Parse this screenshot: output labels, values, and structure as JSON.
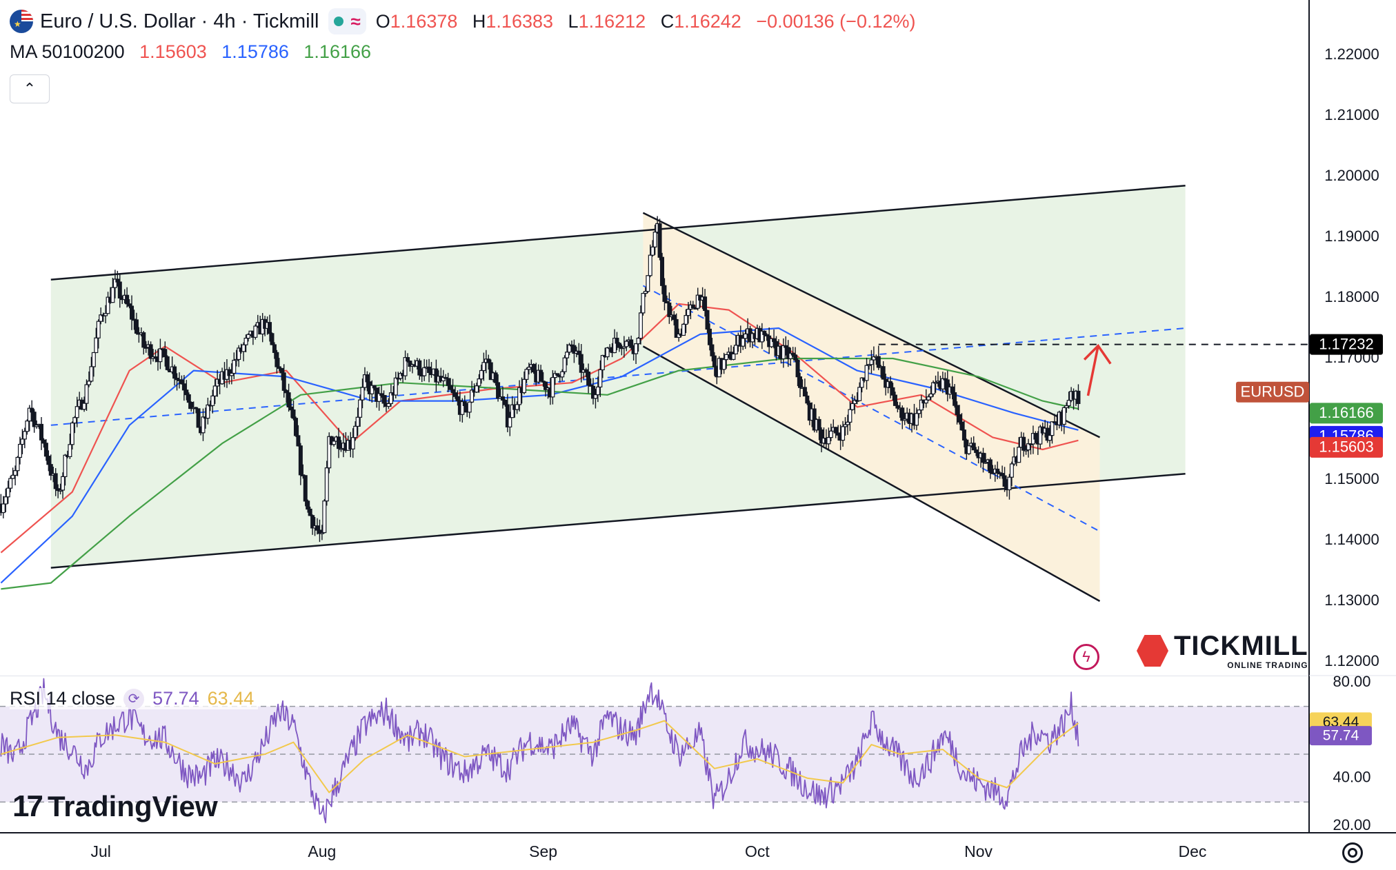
{
  "header": {
    "title": "Euro / U.S. Dollar · 4h · Tickmill",
    "open_label": "O",
    "open": "1.16378",
    "high_label": "H",
    "high": "1.16383",
    "low_label": "L",
    "low": "1.16212",
    "close_label": "C",
    "close": "1.16242",
    "change": "−0.00136 (−0.12%)",
    "ma_label": "MA 50100200",
    "ma_50": "1.15603",
    "ma_100": "1.15786",
    "ma_200": "1.16166",
    "collapse_icon": "chevron-up-icon"
  },
  "rsi_header": {
    "label": "RSI 14 close",
    "rsi": "57.74",
    "rsi_ma": "63.44"
  },
  "branding": {
    "tradingview": "TradingView",
    "tickmill": "TICKMILL",
    "tickmill_sub": "ONLINE TRADING"
  },
  "colors": {
    "ma_50": "#ef5350",
    "ma_100": "#2962ff",
    "ma_200": "#43a047",
    "rsi": "#7e57c2",
    "rsi_ma": "#f2c94c",
    "up_candle": "#131722",
    "channel_up_fill": "#e8f3e5",
    "channel_down_fill": "#fbf1dc",
    "arrow": "#e53935"
  },
  "chart_data": [
    {
      "type": "candlestick",
      "symbol": "EURUSD",
      "timeframe": "4h",
      "x_ticks": [
        "Jul",
        "Aug",
        "Sep",
        "Oct",
        "Nov",
        "Dec"
      ],
      "y_ticks": [
        "1.22000",
        "1.21000",
        "1.20000",
        "1.19000",
        "1.18000",
        "1.17000",
        "1.16000",
        "1.15000",
        "1.14000",
        "1.13000",
        "1.12000"
      ],
      "ylim": [
        1.1167,
        1.2282
      ],
      "price_labels": [
        {
          "name": "resistance",
          "value": "1.17232"
        },
        {
          "name": "EURUSD",
          "value": "1.16242",
          "text": "EURUSD"
        },
        {
          "name": "MA 200",
          "value": "1.16166"
        },
        {
          "name": "MA 100",
          "value": "1.15786"
        },
        {
          "name": "MA 50",
          "value": "1.15603"
        }
      ],
      "anchors": [
        {
          "date": "2025-06-17",
          "price": 1.146
        },
        {
          "date": "2025-06-19",
          "price": 1.151
        },
        {
          "date": "2025-06-21",
          "price": 1.162
        },
        {
          "date": "2025-06-23",
          "price": 1.156
        },
        {
          "date": "2025-06-25",
          "price": 1.147
        },
        {
          "date": "2025-06-27",
          "price": 1.159
        },
        {
          "date": "2025-06-29",
          "price": 1.165
        },
        {
          "date": "2025-07-01",
          "price": 1.177
        },
        {
          "date": "2025-07-03",
          "price": 1.182
        },
        {
          "date": "2025-07-05",
          "price": 1.178
        },
        {
          "date": "2025-07-07",
          "price": 1.172
        },
        {
          "date": "2025-07-10",
          "price": 1.17
        },
        {
          "date": "2025-07-13",
          "price": 1.165
        },
        {
          "date": "2025-07-15",
          "price": 1.158
        },
        {
          "date": "2025-07-17",
          "price": 1.165
        },
        {
          "date": "2025-07-19",
          "price": 1.168
        },
        {
          "date": "2025-07-21",
          "price": 1.172
        },
        {
          "date": "2025-07-24",
          "price": 1.176
        },
        {
          "date": "2025-07-26",
          "price": 1.168
        },
        {
          "date": "2025-07-28",
          "price": 1.159
        },
        {
          "date": "2025-07-30",
          "price": 1.145
        },
        {
          "date": "2025-08-01",
          "price": 1.14
        },
        {
          "date": "2025-08-02",
          "price": 1.157
        },
        {
          "date": "2025-08-05",
          "price": 1.156
        },
        {
          "date": "2025-08-07",
          "price": 1.166
        },
        {
          "date": "2025-08-10",
          "price": 1.162
        },
        {
          "date": "2025-08-13",
          "price": 1.17
        },
        {
          "date": "2025-08-15",
          "price": 1.168
        },
        {
          "date": "2025-08-18",
          "price": 1.166
        },
        {
          "date": "2025-08-21",
          "price": 1.161
        },
        {
          "date": "2025-08-24",
          "price": 1.17
        },
        {
          "date": "2025-08-27",
          "price": 1.16
        },
        {
          "date": "2025-08-30",
          "price": 1.168
        },
        {
          "date": "2025-09-02",
          "price": 1.165
        },
        {
          "date": "2025-09-05",
          "price": 1.172
        },
        {
          "date": "2025-09-08",
          "price": 1.164
        },
        {
          "date": "2025-09-10",
          "price": 1.172
        },
        {
          "date": "2025-09-12",
          "price": 1.173
        },
        {
          "date": "2025-09-14",
          "price": 1.172
        },
        {
          "date": "2025-09-16",
          "price": 1.187
        },
        {
          "date": "2025-09-17",
          "price": 1.191
        },
        {
          "date": "2025-09-18",
          "price": 1.179
        },
        {
          "date": "2025-09-20",
          "price": 1.174
        },
        {
          "date": "2025-09-23",
          "price": 1.181
        },
        {
          "date": "2025-09-25",
          "price": 1.168
        },
        {
          "date": "2025-09-27",
          "price": 1.17
        },
        {
          "date": "2025-09-29",
          "price": 1.174
        },
        {
          "date": "2025-10-01",
          "price": 1.174
        },
        {
          "date": "2025-10-03",
          "price": 1.172
        },
        {
          "date": "2025-10-06",
          "price": 1.17
        },
        {
          "date": "2025-10-08",
          "price": 1.162
        },
        {
          "date": "2025-10-10",
          "price": 1.157
        },
        {
          "date": "2025-10-13",
          "price": 1.158
        },
        {
          "date": "2025-10-15",
          "price": 1.164
        },
        {
          "date": "2025-10-17",
          "price": 1.171
        },
        {
          "date": "2025-10-19",
          "price": 1.166
        },
        {
          "date": "2025-10-21",
          "price": 1.161
        },
        {
          "date": "2025-10-23",
          "price": 1.16
        },
        {
          "date": "2025-10-25",
          "price": 1.164
        },
        {
          "date": "2025-10-27",
          "price": 1.166
        },
        {
          "date": "2025-10-28",
          "price": 1.165
        },
        {
          "date": "2025-10-30",
          "price": 1.156
        },
        {
          "date": "2025-11-01",
          "price": 1.154
        },
        {
          "date": "2025-11-03",
          "price": 1.151
        },
        {
          "date": "2025-11-05",
          "price": 1.149
        },
        {
          "date": "2025-11-07",
          "price": 1.156
        },
        {
          "date": "2025-11-09",
          "price": 1.157
        },
        {
          "date": "2025-11-11",
          "price": 1.158
        },
        {
          "date": "2025-11-13",
          "price": 1.161
        },
        {
          "date": "2025-11-14",
          "price": 1.165
        },
        {
          "date": "2025-11-15",
          "price": 1.1624
        }
      ],
      "moving_averages": [
        {
          "name": "MA 50",
          "value": "1.15603",
          "points": [
            [
              "2025-06-17",
              1.138
            ],
            [
              "2025-06-27",
              1.148
            ],
            [
              "2025-07-05",
              1.168
            ],
            [
              "2025-07-10",
              1.172
            ],
            [
              "2025-07-18",
              1.166
            ],
            [
              "2025-07-27",
              1.168
            ],
            [
              "2025-08-05",
              1.156
            ],
            [
              "2025-08-12",
              1.163
            ],
            [
              "2025-08-25",
              1.165
            ],
            [
              "2025-09-05",
              1.166
            ],
            [
              "2025-09-12",
              1.17
            ],
            [
              "2025-09-20",
              1.179
            ],
            [
              "2025-09-27",
              1.178
            ],
            [
              "2025-10-06",
              1.171
            ],
            [
              "2025-10-15",
              1.162
            ],
            [
              "2025-10-24",
              1.164
            ],
            [
              "2025-11-03",
              1.157
            ],
            [
              "2025-11-10",
              1.155
            ],
            [
              "2025-11-15",
              1.1565
            ]
          ]
        },
        {
          "name": "MA 100",
          "value": "1.15786",
          "points": [
            [
              "2025-06-17",
              1.133
            ],
            [
              "2025-06-27",
              1.144
            ],
            [
              "2025-07-05",
              1.159
            ],
            [
              "2025-07-14",
              1.168
            ],
            [
              "2025-07-27",
              1.167
            ],
            [
              "2025-08-08",
              1.163
            ],
            [
              "2025-08-20",
              1.163
            ],
            [
              "2025-09-02",
              1.164
            ],
            [
              "2025-09-12",
              1.167
            ],
            [
              "2025-09-23",
              1.174
            ],
            [
              "2025-10-04",
              1.175
            ],
            [
              "2025-10-15",
              1.168
            ],
            [
              "2025-10-26",
              1.165
            ],
            [
              "2025-11-06",
              1.161
            ],
            [
              "2025-11-15",
              1.1582
            ]
          ]
        },
        {
          "name": "MA 200",
          "value": "1.16166",
          "points": [
            [
              "2025-06-17",
              1.132
            ],
            [
              "2025-06-24",
              1.133
            ],
            [
              "2025-07-05",
              1.144
            ],
            [
              "2025-07-18",
              1.156
            ],
            [
              "2025-07-29",
              1.164
            ],
            [
              "2025-08-12",
              1.166
            ],
            [
              "2025-08-27",
              1.165
            ],
            [
              "2025-09-10",
              1.164
            ],
            [
              "2025-09-20",
              1.168
            ],
            [
              "2025-10-05",
              1.17
            ],
            [
              "2025-10-20",
              1.17
            ],
            [
              "2025-11-01",
              1.167
            ],
            [
              "2025-11-10",
              1.163
            ],
            [
              "2025-11-15",
              1.1617
            ]
          ]
        }
      ],
      "drawings": [
        {
          "name": "ascending-channel",
          "upper": [
            [
              "2025-06-24",
              1.183
            ],
            [
              "2025-11-30",
              1.1985
            ]
          ],
          "lower": [
            [
              "2025-06-24",
              1.1355
            ],
            [
              "2025-11-30",
              1.151
            ]
          ]
        },
        {
          "name": "descending-channel",
          "upper": [
            [
              "2025-09-15",
              1.194
            ],
            [
              "2025-11-18",
              1.157
            ]
          ],
          "lower": [
            [
              "2025-09-15",
              1.172
            ],
            [
              "2025-11-18",
              1.13
            ]
          ]
        },
        {
          "name": "midline-up",
          "points": [
            [
              "2025-06-24",
              1.159
            ],
            [
              "2025-11-30",
              1.175
            ]
          ]
        },
        {
          "name": "midline-down",
          "points": [
            [
              "2025-09-15",
              1.182
            ],
            [
              "2025-11-18",
              1.1415
            ]
          ]
        },
        {
          "name": "resistance",
          "value": 1.17232,
          "from": "2025-10-18"
        },
        {
          "name": "forecast-arrow",
          "points": [
            [
              "2025-11-15",
              1.165
            ],
            [
              "2025-11-17",
              1.173
            ]
          ]
        }
      ]
    },
    {
      "type": "line",
      "title": "RSI 14 close",
      "y_ticks": [
        "80.00",
        "40.00",
        "20.00"
      ],
      "ylim": [
        16,
        85
      ],
      "levels": [
        70,
        50,
        30
      ],
      "series": [
        {
          "name": "RSI",
          "value": "57.74"
        },
        {
          "name": "RSI MA",
          "value": "63.44"
        }
      ],
      "points": [
        [
          "2025-06-17",
          54
        ],
        [
          "2025-06-19",
          48
        ],
        [
          "2025-06-21",
          62
        ],
        [
          "2025-06-23",
          76
        ],
        [
          "2025-06-25",
          58
        ],
        [
          "2025-06-27",
          52
        ],
        [
          "2025-06-29",
          44
        ],
        [
          "2025-07-01",
          57
        ],
        [
          "2025-07-03",
          62
        ],
        [
          "2025-07-05",
          66
        ],
        [
          "2025-07-07",
          58
        ],
        [
          "2025-07-10",
          56
        ],
        [
          "2025-07-13",
          42
        ],
        [
          "2025-07-15",
          40
        ],
        [
          "2025-07-17",
          47
        ],
        [
          "2025-07-19",
          45
        ],
        [
          "2025-07-21",
          38
        ],
        [
          "2025-07-24",
          55
        ],
        [
          "2025-07-26",
          68
        ],
        [
          "2025-07-28",
          62
        ],
        [
          "2025-07-30",
          40
        ],
        [
          "2025-08-01",
          22
        ],
        [
          "2025-08-02",
          30
        ],
        [
          "2025-08-05",
          50
        ],
        [
          "2025-08-07",
          62
        ],
        [
          "2025-08-10",
          68
        ],
        [
          "2025-08-13",
          55
        ],
        [
          "2025-08-15",
          60
        ],
        [
          "2025-08-18",
          48
        ],
        [
          "2025-08-21",
          42
        ],
        [
          "2025-08-24",
          50
        ],
        [
          "2025-08-27",
          44
        ],
        [
          "2025-08-30",
          56
        ],
        [
          "2025-09-02",
          52
        ],
        [
          "2025-09-05",
          62
        ],
        [
          "2025-09-08",
          50
        ],
        [
          "2025-09-10",
          66
        ],
        [
          "2025-09-12",
          60
        ],
        [
          "2025-09-14",
          58
        ],
        [
          "2025-09-16",
          78
        ],
        [
          "2025-09-17",
          74
        ],
        [
          "2025-09-18",
          64
        ],
        [
          "2025-09-20",
          50
        ],
        [
          "2025-09-23",
          58
        ],
        [
          "2025-09-25",
          30
        ],
        [
          "2025-09-27",
          40
        ],
        [
          "2025-09-29",
          55
        ],
        [
          "2025-10-01",
          52
        ],
        [
          "2025-10-03",
          50
        ],
        [
          "2025-10-06",
          42
        ],
        [
          "2025-10-08",
          36
        ],
        [
          "2025-10-10",
          32
        ],
        [
          "2025-10-13",
          38
        ],
        [
          "2025-10-15",
          46
        ],
        [
          "2025-10-17",
          64
        ],
        [
          "2025-10-19",
          55
        ],
        [
          "2025-10-21",
          48
        ],
        [
          "2025-10-23",
          40
        ],
        [
          "2025-10-25",
          46
        ],
        [
          "2025-10-27",
          58
        ],
        [
          "2025-10-28",
          55
        ],
        [
          "2025-10-30",
          42
        ],
        [
          "2025-11-01",
          38
        ],
        [
          "2025-11-03",
          35
        ],
        [
          "2025-11-05",
          32
        ],
        [
          "2025-11-07",
          50
        ],
        [
          "2025-11-09",
          60
        ],
        [
          "2025-11-11",
          56
        ],
        [
          "2025-11-13",
          63
        ],
        [
          "2025-11-14",
          70
        ],
        [
          "2025-11-15",
          58
        ]
      ],
      "ma_points": [
        [
          "2025-06-17",
          50
        ],
        [
          "2025-06-25",
          57
        ],
        [
          "2025-07-03",
          58
        ],
        [
          "2025-07-10",
          55
        ],
        [
          "2025-07-17",
          46
        ],
        [
          "2025-07-24",
          50
        ],
        [
          "2025-07-28",
          55
        ],
        [
          "2025-08-02",
          34
        ],
        [
          "2025-08-07",
          48
        ],
        [
          "2025-08-13",
          58
        ],
        [
          "2025-08-21",
          49
        ],
        [
          "2025-08-30",
          52
        ],
        [
          "2025-09-08",
          55
        ],
        [
          "2025-09-14",
          60
        ],
        [
          "2025-09-18",
          64
        ],
        [
          "2025-09-25",
          44
        ],
        [
          "2025-10-01",
          48
        ],
        [
          "2025-10-08",
          40
        ],
        [
          "2025-10-13",
          38
        ],
        [
          "2025-10-17",
          54
        ],
        [
          "2025-10-21",
          50
        ],
        [
          "2025-10-27",
          52
        ],
        [
          "2025-11-01",
          40
        ],
        [
          "2025-11-05",
          36
        ],
        [
          "2025-11-11",
          54
        ],
        [
          "2025-11-15",
          63
        ]
      ]
    }
  ]
}
